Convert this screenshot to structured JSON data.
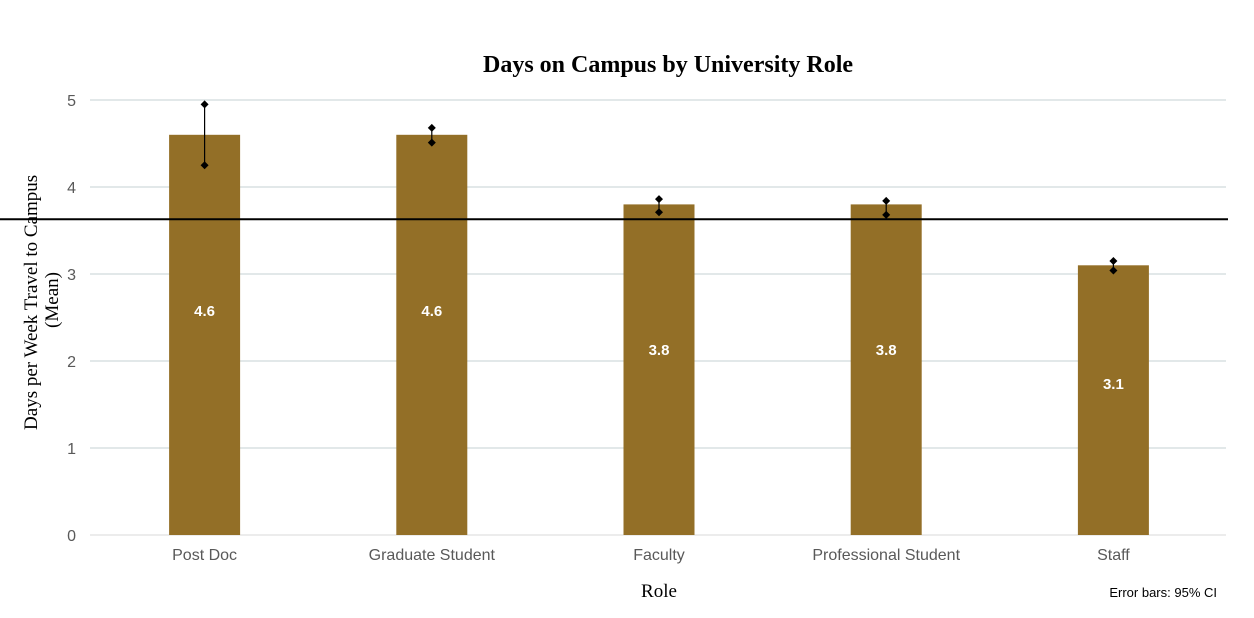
{
  "chart_data": {
    "type": "bar",
    "title": "Days on Campus by University Role",
    "xlabel": "Role",
    "ylabel": "Days per Week Travel to Campus (Mean)",
    "ylabel_lines": [
      "Days per Week Travel to Campus",
      "(Mean)"
    ],
    "categories": [
      "Post Doc",
      "Graduate Student",
      "Faculty",
      "Professional Student",
      "Staff"
    ],
    "values": [
      4.6,
      4.6,
      3.8,
      3.8,
      3.1
    ],
    "data_labels": [
      "4.6",
      "4.6",
      "3.8",
      "3.8",
      "3.1"
    ],
    "error_bars": {
      "lower": [
        4.25,
        4.51,
        3.71,
        3.68,
        3.04
      ],
      "upper": [
        4.95,
        4.68,
        3.86,
        3.84,
        3.15
      ]
    },
    "reference_line": 3.63,
    "ylim": [
      0,
      5
    ],
    "yticks": [
      0,
      1,
      2,
      3,
      4,
      5
    ],
    "grid": true,
    "legend": "none",
    "annotation": "Error bars: 95% CI",
    "colors": {
      "bar": "#936F27",
      "grid": "#C5D0D3",
      "reference_line": "#000000",
      "error_bar": "#000000"
    }
  }
}
